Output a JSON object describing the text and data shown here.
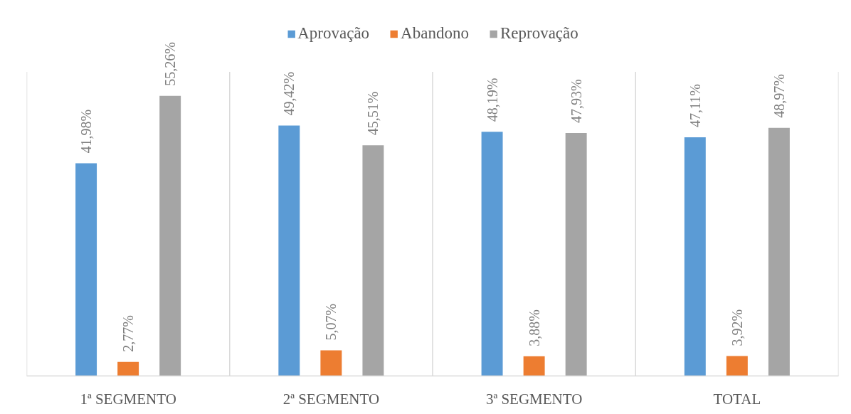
{
  "chart_data": {
    "type": "bar",
    "categories": [
      "1ª SEGMENTO",
      "2ª SEGMENTO",
      "3ª SEGMENTO",
      "TOTAL"
    ],
    "series": [
      {
        "name": "Aprovação",
        "color": "#5b9bd5",
        "values": [
          41.98,
          49.42,
          48.19,
          47.11
        ],
        "value_labels": [
          "41,98%",
          "49,42%",
          "48,19%",
          "47,11%"
        ]
      },
      {
        "name": "Abandono",
        "color": "#ed7d31",
        "values": [
          2.77,
          5.07,
          3.88,
          3.92
        ],
        "value_labels": [
          "2,77%",
          "5,07%",
          "3,88%",
          "3,92%"
        ]
      },
      {
        "name": "Reprovação",
        "color": "#a5a5a5",
        "values": [
          55.26,
          45.51,
          47.93,
          48.97
        ],
        "value_labels": [
          "55,26%",
          "45,51%",
          "47,93%",
          "48,97%"
        ]
      }
    ],
    "ylim": [
      0,
      60
    ],
    "grid": "x",
    "legend": "top",
    "tick_labels": "x"
  }
}
